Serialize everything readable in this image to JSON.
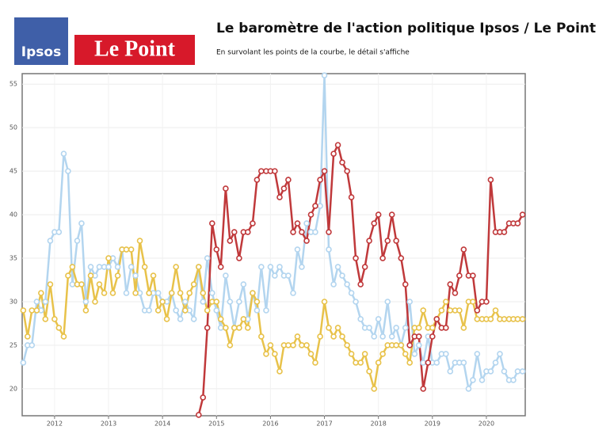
{
  "header": {
    "logo_left": "Ipsos",
    "logo_right": "Le Point"
  },
  "chart_data": {
    "type": "line",
    "title": "Le baromètre de l'action politique Ipsos / Le Point",
    "subtitle": "En survolant les points de la courbe, le détail s'affiche",
    "x": [
      2011.42,
      2011.5,
      2011.58,
      2011.67,
      2011.75,
      2011.83,
      2011.92,
      2012,
      2012.08,
      2012.17,
      2012.25,
      2012.33,
      2012.42,
      2012.5,
      2012.58,
      2012.67,
      2012.75,
      2012.83,
      2012.92,
      2013,
      2013.08,
      2013.17,
      2013.25,
      2013.33,
      2013.42,
      2013.5,
      2013.58,
      2013.67,
      2013.75,
      2013.83,
      2013.92,
      2014,
      2014.08,
      2014.17,
      2014.25,
      2014.33,
      2014.42,
      2014.5,
      2014.58,
      2014.67,
      2014.75,
      2014.83,
      2014.92,
      2015,
      2015.08,
      2015.17,
      2015.25,
      2015.33,
      2015.42,
      2015.5,
      2015.58,
      2015.67,
      2015.75,
      2015.83,
      2015.92,
      2016,
      2016.08,
      2016.17,
      2016.25,
      2016.33,
      2016.42,
      2016.5,
      2016.58,
      2016.67,
      2016.75,
      2016.83,
      2016.92,
      2017,
      2017.08,
      2017.17,
      2017.25,
      2017.33,
      2017.42,
      2017.5,
      2017.58,
      2017.67,
      2017.75,
      2017.83,
      2017.92,
      2018,
      2018.08,
      2018.17,
      2018.25,
      2018.33,
      2018.42,
      2018.5,
      2018.58,
      2018.67,
      2018.75,
      2018.83,
      2018.92,
      2019,
      2019.08,
      2019.17,
      2019.25,
      2019.33,
      2019.42,
      2019.5,
      2019.58,
      2019.67,
      2019.75,
      2019.83,
      2019.92,
      2020,
      2020.08,
      2020.17,
      2020.25,
      2020.33,
      2020.42,
      2020.5,
      2020.58,
      2020.67
    ],
    "xlim": [
      2011.4,
      2020.72
    ],
    "xticks": [
      2012,
      2013,
      2014,
      2015,
      2016,
      2017,
      2018,
      2019,
      2020
    ],
    "ylim": [
      16.9,
      56.2
    ],
    "yticks": [
      20,
      25,
      30,
      35,
      40,
      45,
      50,
      55
    ],
    "grid": true,
    "series": [
      {
        "color": "#b3d5ef",
        "values": [
          23,
          25,
          25,
          30,
          29,
          30,
          37,
          38,
          38,
          47,
          45,
          32,
          37,
          39,
          30,
          34,
          33,
          34,
          34,
          34,
          35,
          34,
          36,
          31,
          34,
          33,
          31,
          29,
          29,
          31,
          31,
          30,
          30,
          31,
          29,
          28,
          30,
          29,
          28,
          34,
          30,
          35,
          31,
          29,
          27,
          33,
          30,
          27,
          30,
          32,
          28,
          31,
          29,
          34,
          29,
          34,
          33,
          34,
          33,
          33,
          31,
          36,
          34,
          39,
          38,
          38,
          41,
          56,
          36,
          32,
          34,
          33,
          32,
          31,
          30,
          28,
          27,
          27,
          26,
          28,
          26,
          30,
          26,
          27,
          25,
          27,
          30,
          24,
          25,
          23,
          26,
          23,
          23,
          24,
          24,
          22,
          23,
          23,
          23,
          20,
          21,
          24,
          21,
          22,
          22,
          23,
          24,
          22,
          21,
          21,
          22,
          22
        ]
      },
      {
        "color": "#e8c24a",
        "values": [
          29,
          26,
          29,
          29,
          31,
          28,
          32,
          28,
          27,
          26,
          33,
          34,
          32,
          32,
          29,
          33,
          30,
          32,
          31,
          35,
          31,
          33,
          36,
          36,
          36,
          31,
          37,
          34,
          31,
          33,
          29,
          30,
          28,
          31,
          34,
          31,
          29,
          31,
          32,
          34,
          31,
          29,
          30,
          30,
          28,
          27,
          25,
          27,
          27,
          28,
          27,
          31,
          30,
          26,
          24,
          25,
          24,
          22,
          25,
          25,
          25,
          26,
          25,
          25,
          24,
          23,
          26,
          30,
          27,
          26,
          27,
          26,
          25,
          24,
          23,
          23,
          24,
          22,
          20,
          23,
          24,
          25,
          25,
          25,
          25,
          24,
          23,
          27,
          27,
          29,
          27,
          27,
          28,
          29,
          30,
          29,
          29,
          29,
          27,
          30,
          30,
          28,
          28,
          28,
          28,
          29,
          28,
          28,
          28,
          28,
          28,
          28
        ]
      },
      {
        "color": "#c0393b",
        "values": [
          null,
          null,
          null,
          null,
          null,
          null,
          null,
          null,
          null,
          null,
          null,
          null,
          null,
          null,
          null,
          null,
          null,
          null,
          null,
          null,
          null,
          null,
          null,
          null,
          null,
          null,
          null,
          null,
          null,
          null,
          null,
          null,
          null,
          null,
          null,
          null,
          null,
          null,
          null,
          17,
          19,
          27,
          39,
          36,
          34,
          43,
          37,
          38,
          35,
          38,
          38,
          39,
          44,
          45,
          45,
          45,
          45,
          42,
          43,
          44,
          38,
          39,
          38,
          37,
          40,
          41,
          44,
          45,
          38,
          47,
          48,
          46,
          45,
          42,
          35,
          32,
          34,
          37,
          39,
          40,
          35,
          37,
          40,
          37,
          35,
          32,
          25,
          26,
          26,
          20,
          23,
          26,
          28,
          27,
          27,
          32,
          31,
          33,
          36,
          33,
          33,
          29,
          30,
          30,
          44,
          38,
          38,
          38,
          39,
          39,
          39,
          40
        ]
      }
    ]
  }
}
